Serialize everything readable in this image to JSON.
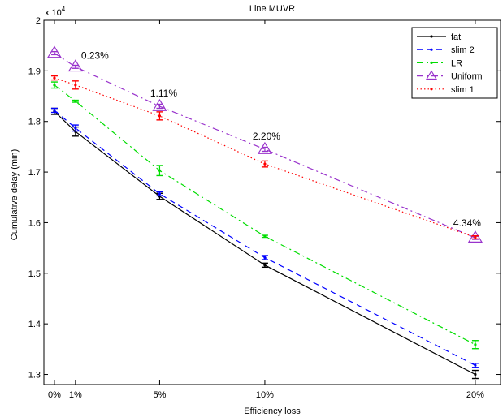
{
  "chart_data": {
    "type": "line",
    "title": "Line MUVR",
    "xlabel": "Efficiency loss",
    "ylabel": "Cumulative delay (min)",
    "y_multiplier": "x 10",
    "y_multiplier_exp": "4",
    "x": [
      0,
      1,
      5,
      10,
      20
    ],
    "x_tick_labels": [
      "0%",
      "1%",
      "5%",
      "10%",
      "20%"
    ],
    "xlim": [
      -0.5,
      21.2
    ],
    "ylim": [
      1.28,
      2.0
    ],
    "y_ticks": [
      1.3,
      1.4,
      1.5,
      1.6,
      1.7,
      1.8,
      1.9,
      2.0
    ],
    "y_tick_labels": [
      "1.3",
      "1.4",
      "1.5",
      "1.6",
      "1.7",
      "1.8",
      "1.9",
      "2"
    ],
    "grid": false,
    "legend_position": "top-right",
    "series": [
      {
        "name": "fat",
        "color": "#000000",
        "dash": "",
        "marker": "dot",
        "values": [
          1.82,
          1.78,
          1.652,
          1.516,
          1.3
        ],
        "err": [
          0.006,
          0.009,
          0.006,
          0.004,
          0.008
        ]
      },
      {
        "name": "slim 2",
        "color": "#0000ff",
        "dash": "7,5",
        "marker": "dot",
        "values": [
          1.822,
          1.787,
          1.657,
          1.531,
          1.318
        ],
        "err": [
          0.004,
          0.006,
          0.004,
          0.004,
          0.004
        ]
      },
      {
        "name": "LR",
        "color": "#00dd00",
        "dash": "8,4,2,4",
        "marker": "dot",
        "values": [
          1.872,
          1.84,
          1.703,
          1.573,
          1.359
        ],
        "err": [
          0.006,
          0.002,
          0.01,
          0.002,
          0.008
        ]
      },
      {
        "name": "Uniform",
        "color": "#9933cc",
        "dash": "8,4,2,4",
        "marker": "triangle",
        "values": [
          1.935,
          1.908,
          1.83,
          1.745,
          1.57
        ],
        "err": [
          0.003,
          0.003,
          0.004,
          0.004,
          0.003
        ]
      },
      {
        "name": "slim 1",
        "color": "#ff0000",
        "dash": "1.5,3",
        "marker": "dot",
        "values": [
          1.886,
          1.872,
          1.811,
          1.716,
          1.571
        ],
        "err": [
          0.004,
          0.008,
          0.008,
          0.006,
          0.003
        ]
      }
    ],
    "annotations": [
      {
        "text": "0.23%",
        "x": 1,
        "y": 1.908
      },
      {
        "text": "1.11%",
        "x": 5,
        "y": 1.83
      },
      {
        "text": "2.20%",
        "x": 10,
        "y": 1.745
      },
      {
        "text": "4.34%",
        "x": 20,
        "y": 1.57
      }
    ]
  }
}
